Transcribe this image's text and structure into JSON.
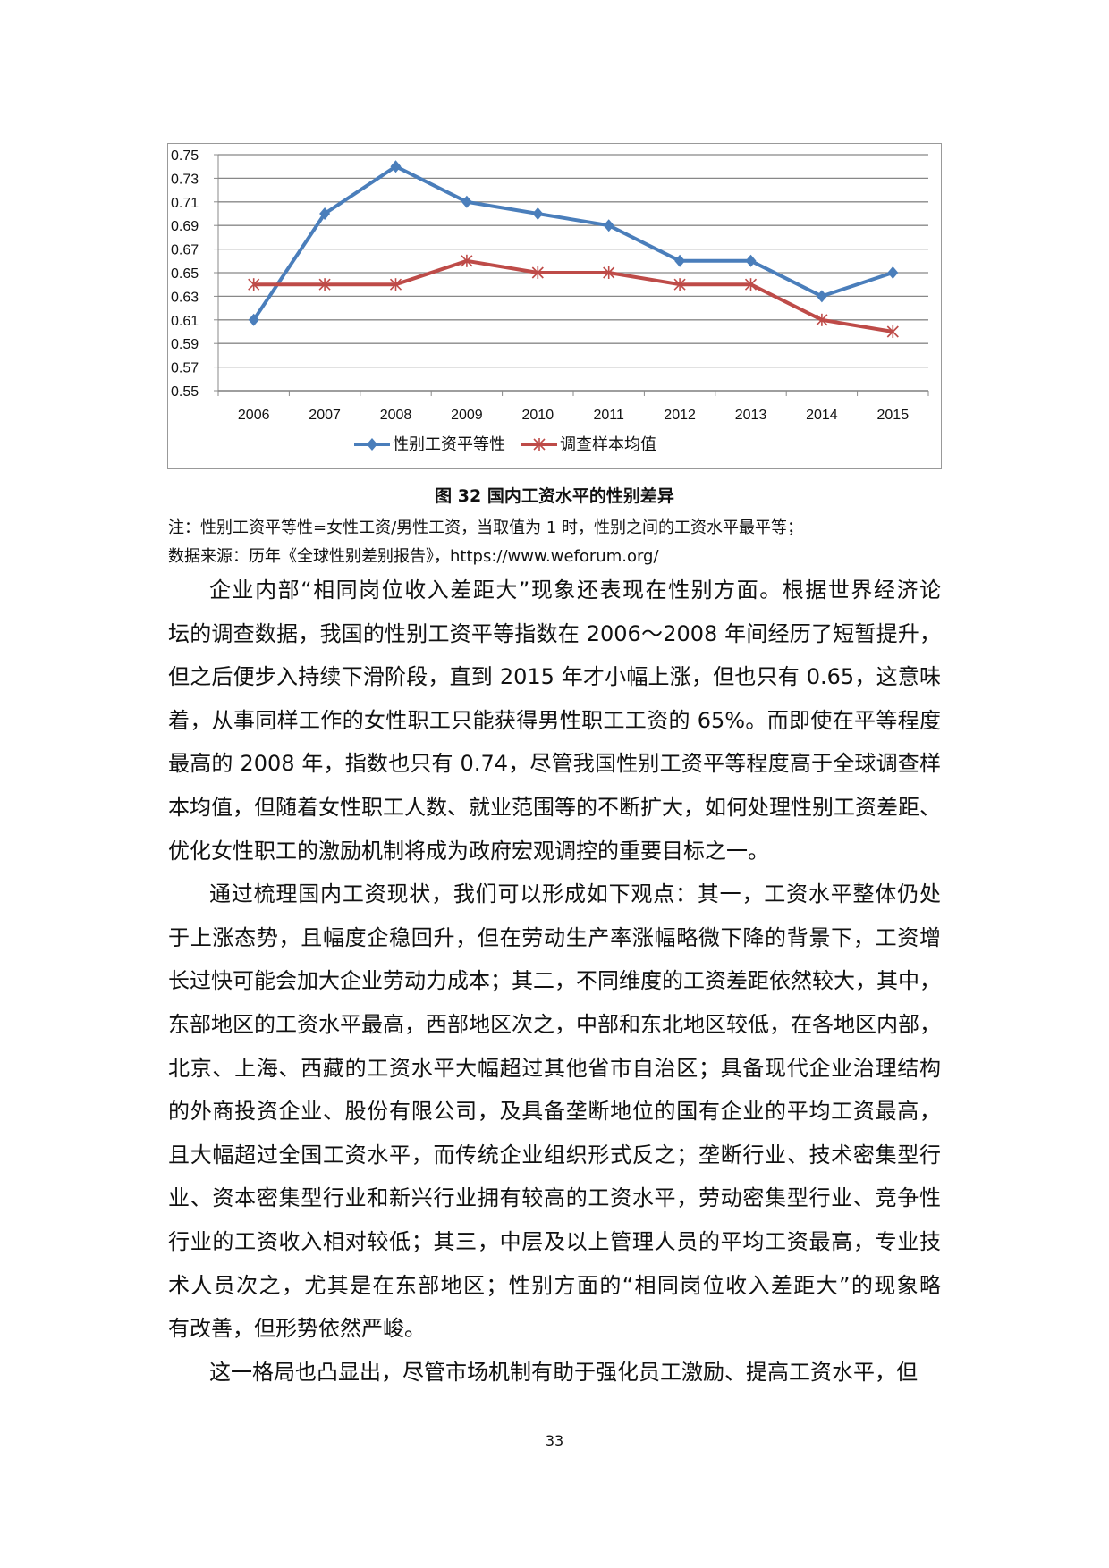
{
  "chart_data": {
    "type": "line",
    "categories": [
      "2006",
      "2007",
      "2008",
      "2009",
      "2010",
      "2011",
      "2012",
      "2013",
      "2014",
      "2015"
    ],
    "yticks": [
      "0.55",
      "0.57",
      "0.59",
      "0.61",
      "0.63",
      "0.65",
      "0.67",
      "0.69",
      "0.71",
      "0.73",
      "0.75"
    ],
    "ylim": [
      0.55,
      0.75
    ],
    "grid": true,
    "legend": "bottom",
    "series": [
      {
        "name": "性别工资平等性",
        "color": "#4a7ebb",
        "marker": "diamond",
        "values": [
          0.61,
          0.7,
          0.74,
          0.71,
          0.7,
          0.69,
          0.66,
          0.66,
          0.63,
          0.65
        ]
      },
      {
        "name": "调查样本均值",
        "color": "#be4b48",
        "marker": "star",
        "values": [
          0.64,
          0.64,
          0.64,
          0.66,
          0.65,
          0.65,
          0.64,
          0.64,
          0.61,
          0.6
        ]
      }
    ]
  },
  "caption": "图 32  国内工资水平的性别差异",
  "note": "注：性别工资平等性=女性工资/男性工资，当取值为 1 时，性别之间的工资水平最平等；",
  "source": "数据来源：历年《全球性别差别报告》，https://www.weforum.org/",
  "paragraphs": [
    [
      "企业内部“相同岗位收入差距大”现象还表现在性别方面。根据世界经济论",
      "坛的调查数据，我国的性别工资平等指数在 2006～2008 年间经历了短暂提升，",
      "但之后便步入持续下滑阶段，直到 2015 年才小幅上涨，但也只有 0.65，这意味",
      "着，从事同样工作的女性职工只能获得男性职工工资的 65%。而即使在平等程度",
      "最高的 2008 年，指数也只有 0.74，尽管我国性别工资平等程度高于全球调查样",
      "本均值，但随着女性职工人数、就业范围等的不断扩大，如何处理性别工资差距、",
      "优化女性职工的激励机制将成为政府宏观调控的重要目标之一。"
    ],
    [
      "通过梳理国内工资现状，我们可以形成如下观点：其一，工资水平整体仍处",
      "于上涨态势，且幅度企稳回升，但在劳动生产率涨幅略微下降的背景下，工资增",
      "长过快可能会加大企业劳动力成本；其二，不同维度的工资差距依然较大，其中，",
      "东部地区的工资水平最高，西部地区次之，中部和东北地区较低，在各地区内部，",
      "北京、上海、西藏的工资水平大幅超过其他省市自治区；具备现代企业治理结构",
      "的外商投资企业、股份有限公司，及具备垄断地位的国有企业的平均工资最高，",
      "且大幅超过全国工资水平，而传统企业组织形式反之；垄断行业、技术密集型行",
      "业、资本密集型行业和新兴行业拥有较高的工资水平，劳动密集型行业、竞争性",
      "行业的工资收入相对较低；其三，中层及以上管理人员的平均工资最高，专业技",
      "术人员次之，尤其是在东部地区；性别方面的“相同岗位收入差距大”的现象略",
      "有改善，但形势依然严峻。"
    ],
    [
      "这一格局也凸显出，尽管市场机制有助于强化员工激励、提高工资水平，但"
    ]
  ],
  "page_number": "33"
}
